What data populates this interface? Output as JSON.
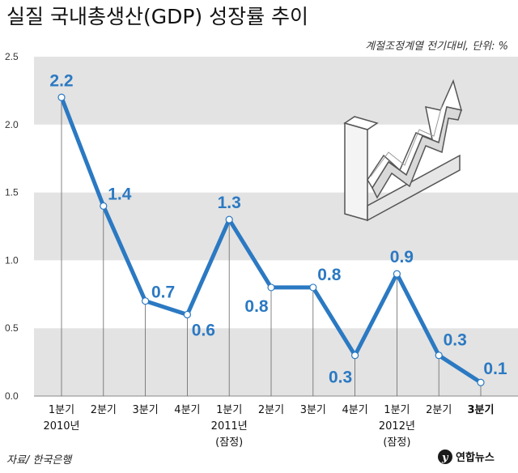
{
  "title": "실질 국내총생산(GDP) 성장률 추이",
  "subtitle": "계절조정계열 전기대비, 단위: %",
  "source": "자료/ 한국은행",
  "logo_text": "연합뉴스",
  "colors": {
    "line": "#2b79c2",
    "band_dark": "#e3e3e3",
    "band_light": "#ffffff",
    "text": "#111111"
  },
  "chart_data": {
    "type": "line",
    "title": "실질 국내총생산(GDP) 성장률 추이",
    "subtitle": "계절조정계열 전기대비, 단위: %",
    "ylim": [
      0,
      2.5
    ],
    "yticks": [
      "0.0",
      "0.5",
      "1.0",
      "1.5",
      "2.0",
      "2.5"
    ],
    "categories": [
      [
        "1분기",
        "2010년",
        ""
      ],
      [
        "2분기",
        "",
        ""
      ],
      [
        "3분기",
        "",
        ""
      ],
      [
        "4분기",
        "",
        ""
      ],
      [
        "1분기",
        "2011년",
        "(잠정)"
      ],
      [
        "2분기",
        "",
        ""
      ],
      [
        "3분기",
        "",
        ""
      ],
      [
        "4분기",
        "",
        ""
      ],
      [
        "1분기",
        "2012년",
        "(잠정)"
      ],
      [
        "2분기",
        "",
        ""
      ],
      [
        "3분기",
        "",
        ""
      ]
    ],
    "values": [
      2.2,
      1.4,
      0.7,
      0.6,
      1.3,
      0.8,
      0.8,
      0.3,
      0.9,
      0.3,
      0.1
    ],
    "value_labels": [
      "2.2",
      "1.4",
      "0.7",
      "0.6",
      "1.3",
      "0.8",
      "0.8",
      "0.3",
      "0.9",
      "0.3",
      "0.1"
    ],
    "grid": "alternating horizontal bands",
    "highlight_last": true
  }
}
